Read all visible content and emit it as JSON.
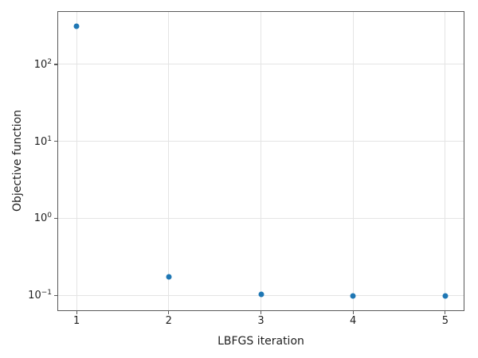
{
  "chart_data": {
    "type": "scatter",
    "title": "",
    "xlabel": "LBFGS iteration",
    "ylabel": "Objective function",
    "x": [
      1,
      2,
      3,
      4,
      5
    ],
    "y": [
      315,
      0.175,
      0.103,
      0.098,
      0.098
    ],
    "xscale": "linear",
    "yscale": "log",
    "xlim": [
      0.8,
      5.2
    ],
    "ylim": [
      0.064,
      480
    ],
    "x_ticks": [
      {
        "value": 1,
        "label": "1"
      },
      {
        "value": 2,
        "label": "2"
      },
      {
        "value": 3,
        "label": "3"
      },
      {
        "value": 4,
        "label": "4"
      },
      {
        "value": 5,
        "label": "5"
      }
    ],
    "y_ticks": [
      {
        "value": 0.1,
        "base": "10",
        "exp": "−1"
      },
      {
        "value": 1,
        "base": "10",
        "exp": "0"
      },
      {
        "value": 10,
        "base": "10",
        "exp": "1"
      },
      {
        "value": 100,
        "base": "10",
        "exp": "2"
      }
    ],
    "grid": true,
    "legend": false,
    "marker": {
      "shape": "circle",
      "color": "#1f77b4",
      "size": 7
    },
    "colors": {
      "grid": "#e4e4e4",
      "spine": "#5a5a5a",
      "text": "#1f1f1f",
      "background": "#ffffff"
    }
  }
}
